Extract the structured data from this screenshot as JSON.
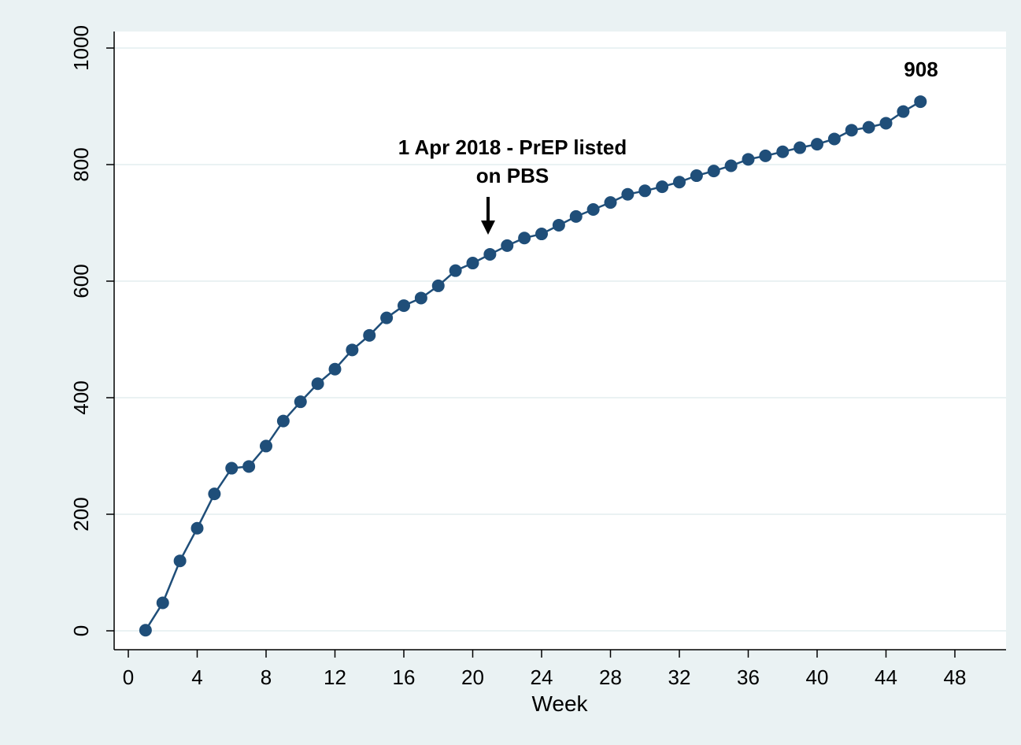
{
  "chart_data": {
    "type": "line",
    "xlabel": "Week",
    "ylabel": "",
    "xlim": [
      0,
      48
    ],
    "ylim": [
      0,
      1000
    ],
    "xticks": [
      0,
      4,
      8,
      12,
      16,
      20,
      24,
      28,
      32,
      36,
      40,
      44,
      48
    ],
    "yticks": [
      0,
      200,
      400,
      600,
      800,
      1000
    ],
    "grid": true,
    "legend": "none",
    "colors": {
      "series": "#1f4e79",
      "grid": "#eaf2f3",
      "plot_background": "#ffffff",
      "page_background": "#eaf2f3"
    },
    "series": [
      {
        "x": [
          1,
          2,
          3,
          4,
          5,
          6,
          7,
          8,
          9,
          10,
          11,
          12,
          13,
          14,
          15,
          16,
          17,
          18,
          19,
          20,
          21,
          22,
          23,
          24,
          25,
          26,
          27,
          28,
          29,
          30,
          31,
          32,
          33,
          34,
          35,
          36,
          37,
          38,
          39,
          40,
          41,
          42,
          43,
          44,
          45,
          46
        ],
        "values": [
          1,
          48,
          120,
          176,
          235,
          279,
          282,
          317,
          360,
          393,
          424,
          449,
          482,
          507,
          537,
          558,
          571,
          592,
          618,
          631,
          646,
          661,
          674,
          681,
          696,
          711,
          723,
          735,
          749,
          755,
          762,
          770,
          781,
          789,
          798,
          809,
          815,
          822,
          829,
          835,
          844,
          859,
          864,
          871,
          891,
          908
        ]
      }
    ],
    "annotations": [
      {
        "text_line1": "1 Apr 2018 - PrEP listed",
        "text_line2": "on PBS",
        "x": 21,
        "arrow": "down"
      },
      {
        "text": "908",
        "x": 46,
        "y": 908
      }
    ]
  }
}
